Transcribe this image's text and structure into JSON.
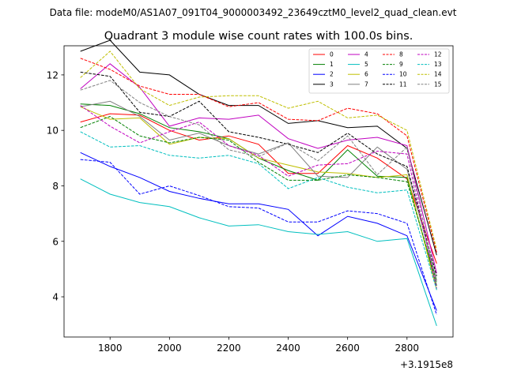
{
  "chart_data": {
    "type": "line",
    "suptitle": "Data file: modeM0/AS1A07_091T04_9000003492_23649cztM0_level2_quad_clean.evt",
    "title": "Quadrant 3 module wise count rates with 100.0s bins.",
    "xlabel": "",
    "ylabel": "",
    "x_offset_label": "+3.1915e8",
    "xlim": [
      1645,
      2955
    ],
    "ylim": [
      2.55,
      13.05
    ],
    "x_ticks": [
      1800,
      2000,
      2200,
      2400,
      2600,
      2800
    ],
    "y_ticks": [
      4,
      6,
      8,
      10,
      12
    ],
    "legend_position": "top-right",
    "x": [
      1700,
      1800,
      1900,
      2000,
      2100,
      2200,
      2300,
      2400,
      2500,
      2600,
      2700,
      2800,
      2900
    ],
    "series": [
      {
        "name": "0",
        "color": "#ff0000",
        "dash": "solid",
        "values": [
          10.3,
          10.6,
          10.55,
          10.0,
          9.65,
          9.8,
          9.5,
          8.45,
          8.45,
          9.45,
          9.0,
          8.25,
          5.2
        ]
      },
      {
        "name": "1",
        "color": "#008000",
        "dash": "solid",
        "values": [
          10.95,
          10.9,
          10.6,
          10.1,
          9.95,
          9.7,
          9.0,
          8.55,
          8.2,
          9.3,
          8.35,
          8.3,
          4.4
        ]
      },
      {
        "name": "2",
        "color": "#0000ff",
        "dash": "solid",
        "values": [
          9.2,
          8.7,
          8.3,
          7.8,
          7.55,
          7.35,
          7.35,
          7.15,
          6.2,
          6.9,
          6.65,
          6.2,
          3.5
        ]
      },
      {
        "name": "3",
        "color": "#000000",
        "dash": "solid",
        "values": [
          12.85,
          13.25,
          12.1,
          12.0,
          11.3,
          10.9,
          10.9,
          10.25,
          10.35,
          10.1,
          10.15,
          9.35,
          5.5
        ]
      },
      {
        "name": "4",
        "color": "#c000c0",
        "dash": "solid",
        "values": [
          11.5,
          12.4,
          11.55,
          10.15,
          10.45,
          10.4,
          10.55,
          9.7,
          9.35,
          9.65,
          9.75,
          9.45,
          4.85
        ]
      },
      {
        "name": "5",
        "color": "#00bfbf",
        "dash": "solid",
        "values": [
          8.25,
          7.7,
          7.4,
          7.25,
          6.85,
          6.55,
          6.6,
          6.35,
          6.25,
          6.35,
          6.0,
          6.1,
          2.95
        ]
      },
      {
        "name": "6",
        "color": "#bfbf00",
        "dash": "solid",
        "values": [
          10.85,
          10.4,
          10.45,
          9.5,
          9.75,
          9.7,
          9.0,
          8.75,
          8.5,
          8.45,
          8.3,
          8.4,
          4.25
        ]
      },
      {
        "name": "7",
        "color": "#808080",
        "dash": "solid",
        "values": [
          10.85,
          11.05,
          10.5,
          9.65,
          9.9,
          9.45,
          9.15,
          9.55,
          8.35,
          8.3,
          9.4,
          8.6,
          4.6
        ]
      },
      {
        "name": "8",
        "color": "#ff0000",
        "dash": "dashed",
        "values": [
          12.6,
          12.2,
          11.6,
          11.3,
          11.3,
          10.85,
          11.0,
          10.4,
          10.35,
          10.8,
          10.6,
          9.8,
          5.6
        ]
      },
      {
        "name": "9",
        "color": "#008000",
        "dash": "dashed",
        "values": [
          10.1,
          10.5,
          9.8,
          9.55,
          9.75,
          9.65,
          8.85,
          8.2,
          8.2,
          8.4,
          8.3,
          8.15,
          4.55
        ]
      },
      {
        "name": "10",
        "color": "#0000ff",
        "dash": "dashed",
        "values": [
          8.95,
          8.85,
          7.7,
          8.0,
          7.65,
          7.25,
          7.2,
          6.7,
          6.7,
          7.1,
          7.0,
          6.65,
          3.35
        ]
      },
      {
        "name": "11",
        "color": "#000000",
        "dash": "dashed",
        "values": [
          12.1,
          11.95,
          10.65,
          10.5,
          11.05,
          9.95,
          9.75,
          9.5,
          9.2,
          9.9,
          9.15,
          8.7,
          4.75
        ]
      },
      {
        "name": "12",
        "color": "#c000c0",
        "dash": "dashed",
        "values": [
          10.9,
          10.15,
          9.55,
          9.95,
          10.3,
          9.45,
          9.1,
          8.35,
          8.75,
          8.8,
          9.25,
          9.15,
          4.3
        ]
      },
      {
        "name": "13",
        "color": "#00bfbf",
        "dash": "dashed",
        "values": [
          9.95,
          9.4,
          9.45,
          9.1,
          9.0,
          9.1,
          8.8,
          7.9,
          8.3,
          7.95,
          7.75,
          7.85,
          4.25
        ]
      },
      {
        "name": "14",
        "color": "#bfbf00",
        "dash": "dashed",
        "values": [
          11.9,
          12.85,
          11.5,
          10.9,
          11.2,
          11.25,
          11.25,
          10.8,
          11.05,
          10.45,
          10.55,
          10.0,
          5.7
        ]
      },
      {
        "name": "15",
        "color": "#808080",
        "dash": "dashed",
        "values": [
          11.45,
          11.8,
          11.0,
          10.5,
          10.2,
          9.3,
          9.05,
          9.55,
          8.9,
          9.8,
          8.4,
          9.4,
          4.5
        ]
      }
    ]
  }
}
